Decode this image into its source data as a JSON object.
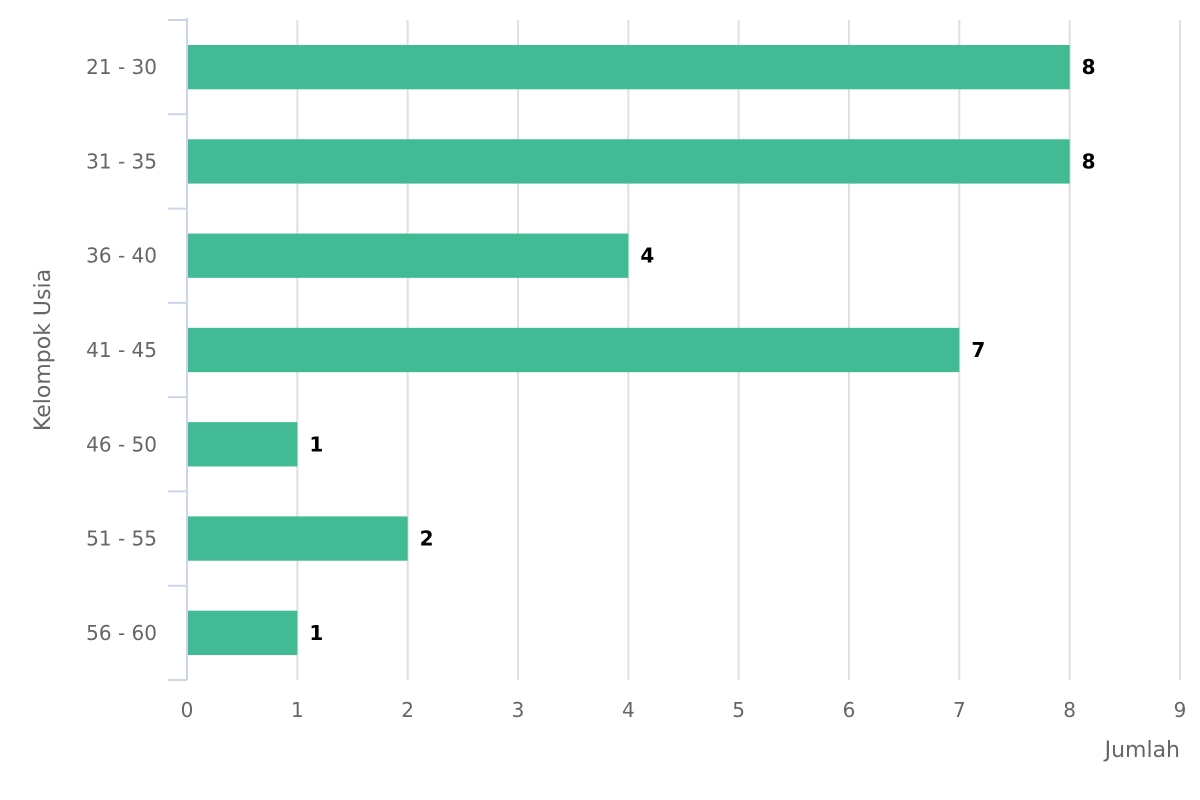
{
  "chart_data": {
    "type": "bar",
    "orientation": "horizontal",
    "categories": [
      "21 - 30",
      "31 - 35",
      "36 - 40",
      "41 - 45",
      "46 - 50",
      "51 - 55",
      "56 - 60"
    ],
    "values": [
      8,
      8,
      4,
      7,
      1,
      2,
      1
    ],
    "xlabel": "Jumlah",
    "ylabel": "Kelompok Usia",
    "xlim": [
      0,
      9
    ],
    "x_ticks": [
      "0",
      "1",
      "2",
      "3",
      "4",
      "5",
      "6",
      "7",
      "8",
      "9"
    ],
    "grid": true,
    "data_labels": true,
    "legend": "none",
    "colors": {
      "bar": "#42bb95",
      "grid": "#e0e0e0",
      "axis": "#ccd6eb",
      "tick_text": "#666666",
      "data_label_text": "#000000"
    }
  }
}
